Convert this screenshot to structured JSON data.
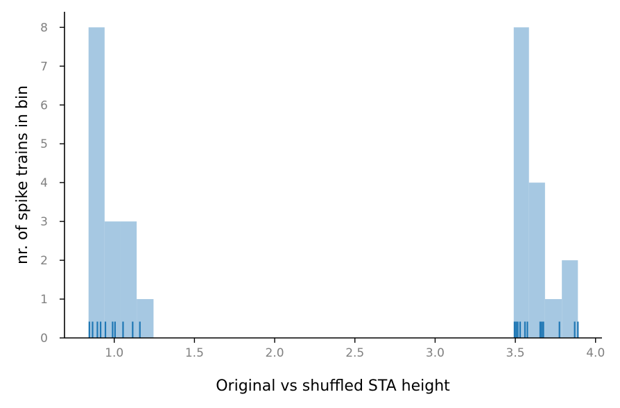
{
  "chart_data": {
    "type": "bar",
    "title": "",
    "xlabel": "Original vs shuffled STA height",
    "ylabel": "nr. of spike trains in bin",
    "xlim": [
      0.69,
      4.04
    ],
    "ylim": [
      0,
      8.4
    ],
    "xticks": [
      1.0,
      1.5,
      2.0,
      2.5,
      3.0,
      3.5,
      4.0
    ],
    "xtick_labels": [
      "1.0",
      "1.5",
      "2.0",
      "2.5",
      "3.0",
      "3.5",
      "4.0"
    ],
    "yticks": [
      0,
      1,
      2,
      3,
      4,
      5,
      6,
      7,
      8
    ],
    "ytick_labels": [
      "0",
      "1",
      "2",
      "3",
      "4",
      "5",
      "6",
      "7",
      "8"
    ],
    "grid": false,
    "colors": {
      "bars": "#a6c8e2",
      "rug": "#1f77b4",
      "axis": "#000000",
      "tick_label": "#808080"
    },
    "histogram_bins": [
      {
        "x0": 0.84,
        "x1": 0.94,
        "count": 8
      },
      {
        "x0": 0.94,
        "x1": 1.04,
        "count": 3
      },
      {
        "x0": 1.04,
        "x1": 1.14,
        "count": 3
      },
      {
        "x0": 1.14,
        "x1": 1.245,
        "count": 1
      },
      {
        "x0": 3.49,
        "x1": 3.585,
        "count": 8
      },
      {
        "x0": 3.585,
        "x1": 3.685,
        "count": 4
      },
      {
        "x0": 3.685,
        "x1": 3.79,
        "count": 1
      },
      {
        "x0": 3.79,
        "x1": 3.89,
        "count": 2
      }
    ],
    "rug_values": [
      0.845,
      0.865,
      0.895,
      0.915,
      0.945,
      0.99,
      1.005,
      1.055,
      1.115,
      1.16,
      3.495,
      3.505,
      3.515,
      3.53,
      3.56,
      3.575,
      3.655,
      3.665,
      3.675,
      3.775,
      3.87,
      3.89
    ],
    "rug_height": 0.42
  }
}
